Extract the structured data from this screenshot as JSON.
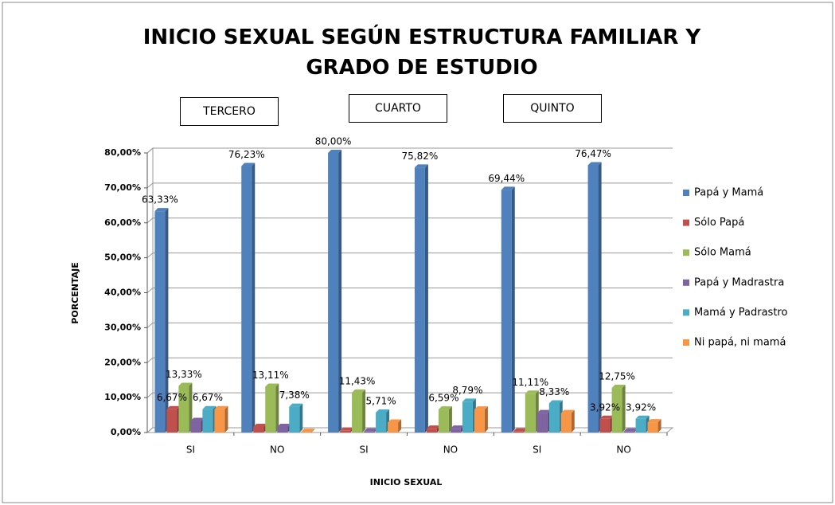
{
  "chart_data": {
    "type": "bar",
    "title": "INICIO SEXUAL SEGÚN ESTRUCTURA FAMILIAR Y GRADO DE ESTUDIO",
    "annotations": [
      "TERCERO",
      "CUARTO",
      "QUINTO"
    ],
    "x_label": "INICIO SEXUAL",
    "y_label": "PORCENTAJE",
    "categories": [
      "SI",
      "NO",
      "SI",
      "NO",
      "SI",
      "NO"
    ],
    "series": [
      {
        "name": "Papá y Mamá",
        "color": "#4f81bd",
        "values": [
          63.33,
          76.23,
          80.0,
          75.82,
          69.44,
          76.47
        ],
        "value_labels": [
          "63,33%",
          "76,23%",
          "80,00%",
          "75,82%",
          "69,44%",
          "76,47%"
        ]
      },
      {
        "name": "Sólo Papá",
        "color": "#c0504d",
        "values": [
          6.67,
          1.6,
          0.5,
          1.1,
          0.3,
          3.92
        ],
        "value_labels": [
          "6,67%",
          null,
          null,
          null,
          null,
          "3,92%"
        ]
      },
      {
        "name": "Sólo Mamá",
        "color": "#9bbb59",
        "values": [
          13.33,
          13.11,
          11.43,
          6.59,
          11.11,
          12.75
        ],
        "value_labels": [
          "13,33%",
          "13,11%",
          "11,43%",
          "6,59%",
          "11,11%",
          "12,75%"
        ]
      },
      {
        "name": "Papá y Madrastra",
        "color": "#8064a2",
        "values": [
          3.3,
          1.6,
          0.3,
          1.1,
          5.56,
          0.3
        ],
        "value_labels": [
          null,
          null,
          null,
          null,
          null,
          null
        ]
      },
      {
        "name": "Mamá y Padrastro",
        "color": "#4bacc6",
        "values": [
          6.67,
          7.38,
          5.71,
          8.79,
          8.33,
          3.92
        ],
        "value_labels": [
          "6,67%",
          "7,38%",
          "5,71%",
          "8,79%",
          "8,33%",
          "3,92%"
        ]
      },
      {
        "name": "Ni papá, ni mamá",
        "color": "#f79646",
        "values": [
          6.67,
          0.2,
          2.86,
          6.59,
          5.56,
          2.94
        ],
        "value_labels": [
          null,
          null,
          null,
          null,
          null,
          null
        ]
      }
    ],
    "ylim": [
      0,
      80
    ],
    "yticks": [
      {
        "value": 0,
        "label": "0,00%"
      },
      {
        "value": 10,
        "label": "10,00%"
      },
      {
        "value": 20,
        "label": "20,00%"
      },
      {
        "value": 30,
        "label": "30,00%"
      },
      {
        "value": 40,
        "label": "40,00%"
      },
      {
        "value": 50,
        "label": "50,00%"
      },
      {
        "value": 60,
        "label": "60,00%"
      },
      {
        "value": 70,
        "label": "70,00%"
      },
      {
        "value": 80,
        "label": "80,00%"
      }
    ],
    "grid": true,
    "legend": "right"
  }
}
